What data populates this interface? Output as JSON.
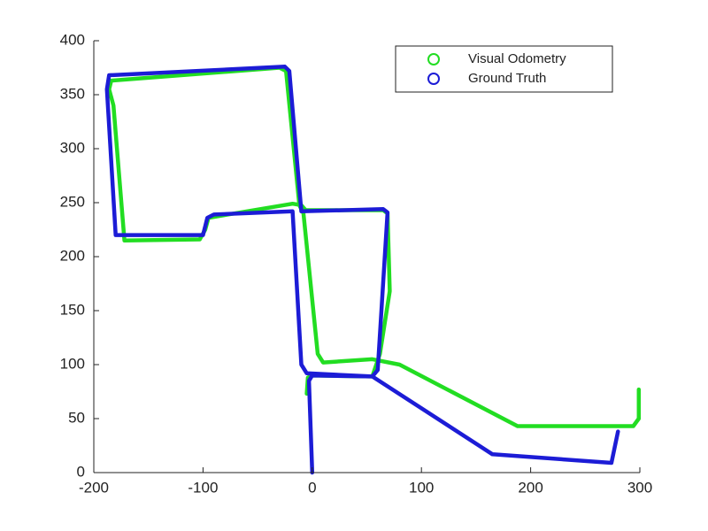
{
  "chart_data": {
    "type": "line",
    "xlim": [
      -200,
      300
    ],
    "ylim": [
      0,
      400
    ],
    "xticks": [
      -200,
      -100,
      0,
      100,
      200,
      300
    ],
    "yticks": [
      0,
      50,
      100,
      150,
      200,
      250,
      300,
      350,
      400
    ],
    "legend": "upper right",
    "series": [
      {
        "name": "Visual Odometry",
        "color": "#22dd22",
        "x": [
          -5,
          -4,
          0,
          55,
          62,
          71,
          69,
          65,
          -6,
          -12,
          -24,
          -30,
          -184,
          -186,
          -182,
          -172,
          -103,
          -98,
          -95,
          -18,
          -12,
          -8,
          5,
          10,
          55,
          80,
          188,
          294,
          299,
          299
        ],
        "values": [
          73,
          88,
          90,
          89,
          110,
          168,
          240,
          243,
          243,
          250,
          372,
          375,
          363,
          355,
          340,
          215,
          216,
          225,
          236,
          249,
          248,
          240,
          110,
          102,
          105,
          100,
          43,
          43,
          50,
          77
        ]
      },
      {
        "name": "Ground Truth",
        "color": "#1c1cd6",
        "x": [
          0,
          -3,
          0,
          55,
          60,
          69,
          65,
          -10,
          -21,
          -25,
          -186,
          -188,
          -180,
          -100,
          -96,
          -90,
          -18,
          -10,
          -5,
          55,
          165,
          274,
          280
        ],
        "values": [
          0,
          85,
          90,
          89,
          95,
          241,
          244,
          242,
          372,
          376,
          368,
          355,
          220,
          220,
          236,
          239,
          242,
          100,
          92,
          89,
          17,
          9,
          38
        ]
      }
    ]
  }
}
